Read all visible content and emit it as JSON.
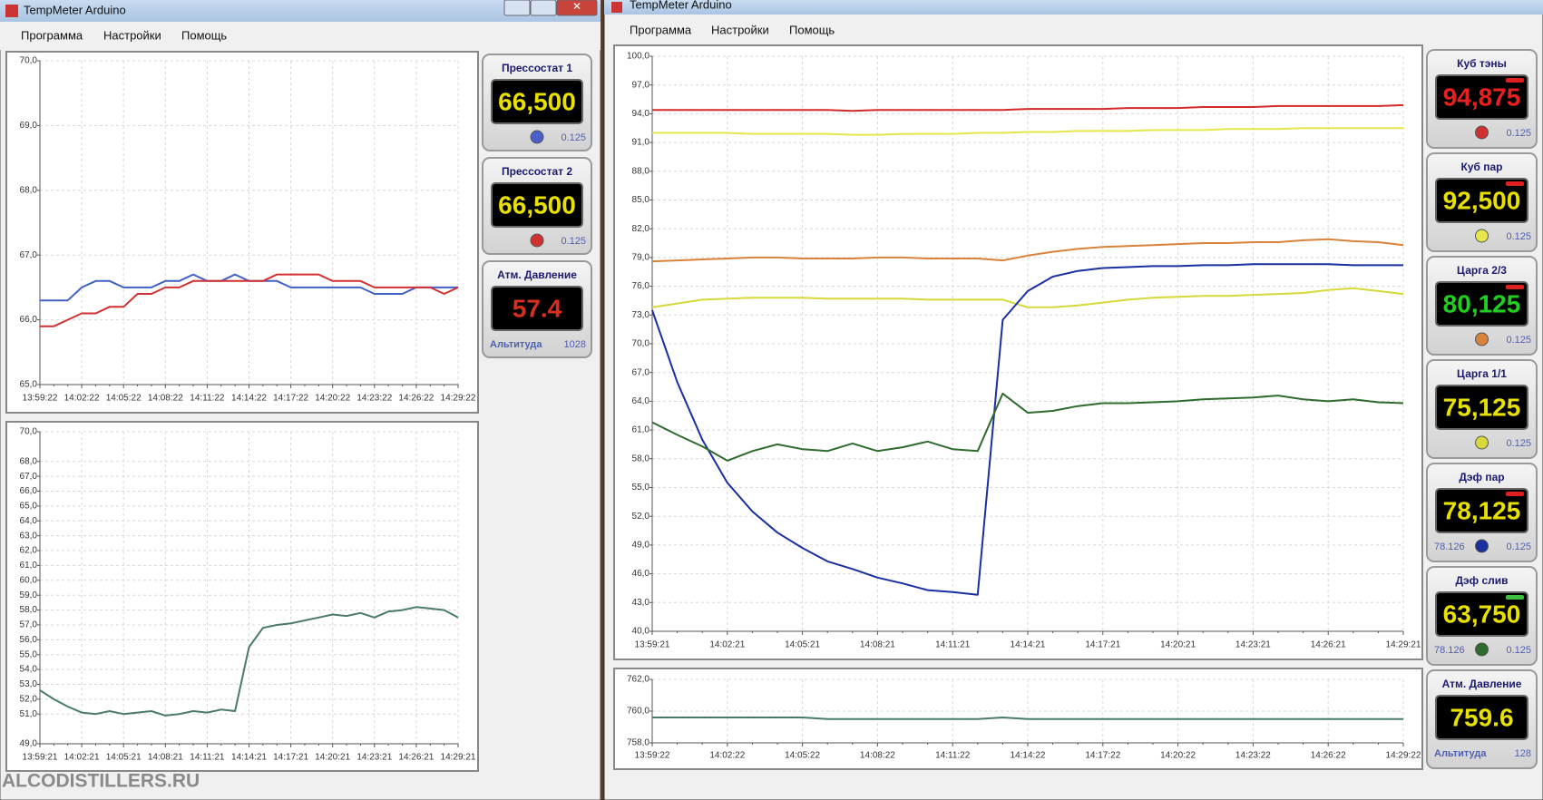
{
  "windows": [
    {
      "title": "TempMeter Arduino",
      "menu": [
        "Программа",
        "Настройки",
        "Помощь"
      ],
      "gauges": [
        {
          "label": "Прессостат 1",
          "value": "66,500",
          "value_color": "#e8e000",
          "dot_color": "#4a5fc8",
          "right": "0.125"
        },
        {
          "label": "Прессостат 2",
          "value": "66,500",
          "value_color": "#e8e000",
          "dot_color": "#d03030",
          "right": "0.125"
        },
        {
          "label": "Атм. Давление",
          "value": "57.4",
          "value_color": "#d83020",
          "left": "Альтитуда",
          "right": "1028"
        }
      ]
    },
    {
      "title": "TempMeter Arduino",
      "menu": [
        "Программа",
        "Настройки",
        "Помощь"
      ],
      "gauges": [
        {
          "label": "Куб тэны",
          "value": "94,875",
          "value_color": "#e82020",
          "indicator": "#e02020",
          "dot_color": "#d03030",
          "right": "0.125"
        },
        {
          "label": "Куб пар",
          "value": "92,500",
          "value_color": "#e8e000",
          "indicator": "#e02020",
          "dot_color": "#e6e64a",
          "right": "0.125"
        },
        {
          "label": "Царга 2/3",
          "value": "80,125",
          "value_color": "#20d020",
          "indicator": "#e02020",
          "dot_color": "#d9823a",
          "right": "0.125"
        },
        {
          "label": "Царга 1/1",
          "value": "75,125",
          "value_color": "#e8e000",
          "dot_color": "#d8d83a",
          "right": "0.125"
        },
        {
          "label": "Дэф пар",
          "value": "78,125",
          "value_color": "#e8e000",
          "indicator": "#e02020",
          "dot_color": "#1a2fa0",
          "left": "78.126",
          "right": "0.125"
        },
        {
          "label": "Дэф слив",
          "value": "63,750",
          "value_color": "#e8e000",
          "indicator": "#40c040",
          "dot_color": "#2f6b2f",
          "left": "78.126",
          "right": "0.125"
        },
        {
          "label": "Атм. Давление",
          "value": "759.6",
          "value_color": "#e8e000",
          "left": "Альтитуда",
          "right": "128"
        }
      ]
    }
  ],
  "watermark": "ALCODISTILLERS.RU",
  "chart_data": [
    {
      "type": "line",
      "grid": true,
      "categories": [
        "13:59:22",
        null,
        null,
        "14:02:22",
        null,
        null,
        "14:05:22",
        null,
        null,
        "14:08:22",
        null,
        null,
        "14:11:22",
        null,
        null,
        "14:14:22",
        null,
        null,
        "14:17:22",
        null,
        null,
        "14:20:22",
        null,
        null,
        "14:23:22",
        null,
        null,
        "14:26:22",
        null,
        null,
        "14:29:22"
      ],
      "ylim": [
        65,
        70
      ],
      "yticks": [
        {
          "value": 65,
          "label": "65,0"
        },
        {
          "value": 66,
          "label": "66,0"
        },
        {
          "value": 67,
          "label": "67,0"
        },
        {
          "value": 68,
          "label": "68,0"
        },
        {
          "value": 69,
          "label": "69,0"
        },
        {
          "value": 70,
          "label": "70,0"
        }
      ],
      "series": [
        {
          "color": "#4060c8",
          "values": [
            66.3,
            66.3,
            66.3,
            66.5,
            66.6,
            66.6,
            66.5,
            66.5,
            66.5,
            66.6,
            66.6,
            66.7,
            66.6,
            66.6,
            66.7,
            66.6,
            66.6,
            66.6,
            66.5,
            66.5,
            66.5,
            66.5,
            66.5,
            66.5,
            66.4,
            66.4,
            66.4,
            66.5,
            66.5,
            66.5,
            66.5
          ]
        },
        {
          "color": "#d03030",
          "values": [
            65.9,
            65.9,
            66.0,
            66.1,
            66.1,
            66.2,
            66.2,
            66.4,
            66.4,
            66.5,
            66.5,
            66.6,
            66.6,
            66.6,
            66.6,
            66.6,
            66.6,
            66.7,
            66.7,
            66.7,
            66.7,
            66.6,
            66.6,
            66.6,
            66.5,
            66.5,
            66.5,
            66.5,
            66.5,
            66.4,
            66.5
          ]
        }
      ]
    },
    {
      "type": "line",
      "grid": true,
      "categories": [
        "13:59:21",
        null,
        null,
        "14:02:21",
        null,
        null,
        "14:05:21",
        null,
        null,
        "14:08:21",
        null,
        null,
        "14:11:21",
        null,
        null,
        "14:14:21",
        null,
        null,
        "14:17:21",
        null,
        null,
        "14:20:21",
        null,
        null,
        "14:23:21",
        null,
        null,
        "14:26:21",
        null,
        null,
        "14:29:21"
      ],
      "ylim": [
        49,
        70
      ],
      "yticks": [
        {
          "value": 49,
          "label": "49,0"
        },
        {
          "value": 51,
          "label": "51,0"
        },
        {
          "value": 52,
          "label": "52,0"
        },
        {
          "value": 53,
          "label": "53,0"
        },
        {
          "value": 54,
          "label": "54,0"
        },
        {
          "value": 55,
          "label": "55,0"
        },
        {
          "value": 56,
          "label": "56,0"
        },
        {
          "value": 57,
          "label": "57,0"
        },
        {
          "value": 58,
          "label": "58,0"
        },
        {
          "value": 59,
          "label": "59,0"
        },
        {
          "value": 60,
          "label": "60,0"
        },
        {
          "value": 61,
          "label": "61,0"
        },
        {
          "value": 62,
          "label": "62,0"
        },
        {
          "value": 63,
          "label": "63,0"
        },
        {
          "value": 64,
          "label": "64,0"
        },
        {
          "value": 65,
          "label": "65,0"
        },
        {
          "value": 66,
          "label": "66,0"
        },
        {
          "value": 67,
          "label": "67,0"
        },
        {
          "value": 68,
          "label": "68,0"
        },
        {
          "value": 70,
          "label": "70,0"
        }
      ],
      "series": [
        {
          "color": "#4a7a6a",
          "values": [
            52.6,
            52.0,
            51.5,
            51.1,
            51.0,
            51.2,
            51.0,
            51.1,
            51.2,
            50.9,
            51.0,
            51.2,
            51.1,
            51.3,
            51.2,
            55.5,
            56.8,
            57.0,
            57.1,
            57.3,
            57.5,
            57.7,
            57.6,
            57.8,
            57.5,
            57.9,
            58.0,
            58.2,
            58.1,
            58.0,
            57.5
          ]
        }
      ]
    },
    {
      "type": "line",
      "grid": true,
      "categories": [
        "13:59:21",
        null,
        null,
        "14:02:21",
        null,
        null,
        "14:05:21",
        null,
        null,
        "14:08:21",
        null,
        null,
        "14:11:21",
        null,
        null,
        "14:14:21",
        null,
        null,
        "14:17:21",
        null,
        null,
        "14:20:21",
        null,
        null,
        "14:23:21",
        null,
        null,
        "14:26:21",
        null,
        null,
        "14:29:21"
      ],
      "ylim": [
        40,
        100
      ],
      "yticks": [
        {
          "value": 40,
          "label": "40,0"
        },
        {
          "value": 43,
          "label": "43,0"
        },
        {
          "value": 46,
          "label": "46,0"
        },
        {
          "value": 49,
          "label": "49,0"
        },
        {
          "value": 52,
          "label": "52,0"
        },
        {
          "value": 55,
          "label": "55,0"
        },
        {
          "value": 58,
          "label": "58,0"
        },
        {
          "value": 61,
          "label": "61,0"
        },
        {
          "value": 64,
          "label": "64,0"
        },
        {
          "value": 67,
          "label": "67,0"
        },
        {
          "value": 70,
          "label": "70,0"
        },
        {
          "value": 73,
          "label": "73,0"
        },
        {
          "value": 76,
          "label": "76,0"
        },
        {
          "value": 79,
          "label": "79,0"
        },
        {
          "value": 82,
          "label": "82,0"
        },
        {
          "value": 85,
          "label": "85,0"
        },
        {
          "value": 88,
          "label": "88,0"
        },
        {
          "value": 91,
          "label": "91,0"
        },
        {
          "value": 94,
          "label": "94,0"
        },
        {
          "value": 97,
          "label": "97,0"
        },
        {
          "value": 100,
          "label": "100,0"
        }
      ],
      "series": [
        {
          "color": "#d42a2a",
          "values": [
            94.4,
            94.4,
            94.4,
            94.4,
            94.4,
            94.4,
            94.4,
            94.4,
            94.3,
            94.4,
            94.4,
            94.4,
            94.4,
            94.4,
            94.4,
            94.5,
            94.5,
            94.5,
            94.5,
            94.6,
            94.6,
            94.6,
            94.7,
            94.7,
            94.7,
            94.8,
            94.8,
            94.8,
            94.8,
            94.8,
            94.9
          ]
        },
        {
          "color": "#e6e64a",
          "values": [
            92.0,
            92.0,
            92.0,
            92.0,
            91.9,
            91.9,
            91.9,
            91.9,
            91.8,
            91.8,
            91.9,
            91.9,
            91.9,
            92.0,
            92.0,
            92.1,
            92.1,
            92.2,
            92.2,
            92.2,
            92.3,
            92.3,
            92.3,
            92.4,
            92.4,
            92.4,
            92.5,
            92.5,
            92.5,
            92.5,
            92.5
          ]
        },
        {
          "color": "#d9823a",
          "values": [
            78.6,
            78.7,
            78.8,
            78.9,
            79.0,
            79.0,
            78.9,
            78.9,
            78.9,
            79.0,
            79.0,
            78.9,
            78.9,
            78.9,
            78.7,
            79.2,
            79.6,
            79.9,
            80.1,
            80.2,
            80.3,
            80.4,
            80.5,
            80.5,
            80.6,
            80.6,
            80.8,
            80.9,
            80.7,
            80.6,
            80.3
          ]
        },
        {
          "color": "#d8d83a",
          "values": [
            73.8,
            74.2,
            74.6,
            74.7,
            74.8,
            74.8,
            74.8,
            74.7,
            74.7,
            74.7,
            74.7,
            74.6,
            74.6,
            74.6,
            74.6,
            73.8,
            73.8,
            74.0,
            74.3,
            74.6,
            74.8,
            74.9,
            75.0,
            75.0,
            75.1,
            75.2,
            75.3,
            75.6,
            75.8,
            75.5,
            75.2
          ]
        },
        {
          "color": "#1a2fa0",
          "values": [
            73.5,
            66.0,
            60.0,
            55.5,
            52.5,
            50.3,
            48.7,
            47.3,
            46.5,
            45.6,
            45.0,
            44.3,
            44.1,
            43.8,
            72.5,
            75.5,
            77.0,
            77.6,
            77.9,
            78.0,
            78.1,
            78.1,
            78.2,
            78.2,
            78.3,
            78.3,
            78.3,
            78.3,
            78.2,
            78.2,
            78.2
          ]
        },
        {
          "color": "#2f6b2f",
          "values": [
            61.8,
            60.5,
            59.3,
            57.8,
            58.8,
            59.5,
            59.0,
            58.8,
            59.6,
            58.8,
            59.2,
            59.8,
            59.0,
            58.8,
            64.8,
            62.8,
            63.0,
            63.5,
            63.8,
            63.8,
            63.9,
            64.0,
            64.2,
            64.3,
            64.4,
            64.6,
            64.2,
            64.0,
            64.2,
            63.9,
            63.8
          ]
        }
      ]
    },
    {
      "type": "line",
      "grid": true,
      "categories": [
        "13:59:22",
        null,
        null,
        "14:02:22",
        null,
        null,
        "14:05:22",
        null,
        null,
        "14:08:22",
        null,
        null,
        "14:11:22",
        null,
        null,
        "14:14:22",
        null,
        null,
        "14:17:22",
        null,
        null,
        "14:20:22",
        null,
        null,
        "14:23:22",
        null,
        null,
        "14:26:22",
        null,
        null,
        "14:29:22"
      ],
      "ylim": [
        758,
        762
      ],
      "yticks": [
        {
          "value": 758,
          "label": "758,0"
        },
        {
          "value": 760,
          "label": "760,0"
        },
        {
          "value": 762,
          "label": "762,0"
        }
      ],
      "series": [
        {
          "color": "#4a7a6a",
          "values": [
            759.6,
            759.6,
            759.6,
            759.6,
            759.6,
            759.6,
            759.6,
            759.5,
            759.5,
            759.5,
            759.5,
            759.5,
            759.5,
            759.5,
            759.6,
            759.5,
            759.5,
            759.5,
            759.5,
            759.5,
            759.5,
            759.5,
            759.5,
            759.5,
            759.5,
            759.5,
            759.5,
            759.5,
            759.5,
            759.5,
            759.5
          ]
        }
      ]
    }
  ]
}
